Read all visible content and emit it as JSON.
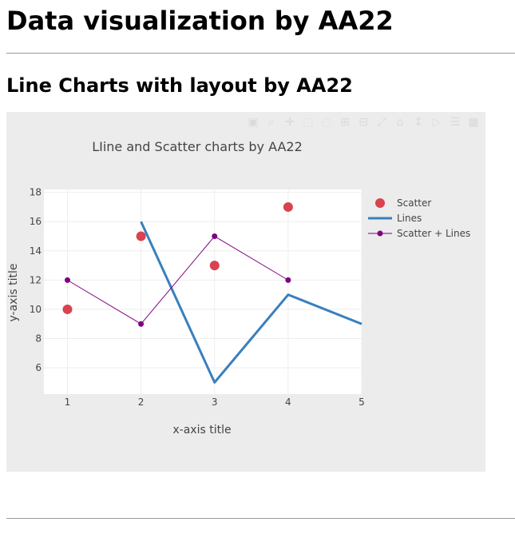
{
  "page": {
    "title": "Data visualization by AA22",
    "section_title": "Line Charts with layout by AA22"
  },
  "modebar": {
    "icons": [
      "camera-icon",
      "zoom-icon",
      "pan-icon",
      "box-select-icon",
      "lasso-icon",
      "zoom-in-icon",
      "zoom-out-icon",
      "autoscale-icon",
      "reset-axes-icon",
      "toggle-spike-lines-icon",
      "hover-closest-icon",
      "hover-compare-icon",
      "plotly-logo-icon"
    ]
  },
  "chart_data": {
    "type": "line",
    "title": "LIine and Scatter charts by AA22",
    "xlabel": "x-axis title",
    "ylabel": "y-axis title",
    "xlim": [
      0.68,
      5
    ],
    "ylim": [
      4.2,
      18.2
    ],
    "xticks": [
      1,
      2,
      3,
      4,
      5
    ],
    "yticks": [
      6,
      8,
      10,
      12,
      14,
      16,
      18
    ],
    "grid": true,
    "legend_position": "top-right",
    "series": [
      {
        "name": "Scatter",
        "mode": "markers",
        "color": "#d9434f",
        "x": [
          1,
          2,
          3,
          4
        ],
        "y": [
          10,
          15,
          13,
          17
        ]
      },
      {
        "name": "Lines",
        "mode": "lines",
        "color": "#3a7fbd",
        "x": [
          2,
          3,
          4,
          5
        ],
        "y": [
          16,
          5,
          11,
          9
        ]
      },
      {
        "name": "Scatter + Lines",
        "mode": "lines+markers",
        "color": "#800080",
        "x": [
          1,
          2,
          3,
          4
        ],
        "y": [
          12,
          9,
          15,
          12
        ]
      }
    ]
  }
}
